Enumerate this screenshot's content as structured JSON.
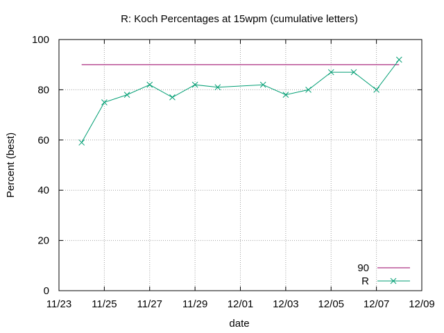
{
  "chart_data": {
    "type": "line",
    "title": "R: Koch Percentages at 15wpm (cumulative letters)",
    "xlabel": "date",
    "ylabel": "Percent (best)",
    "ylim": [
      0,
      100
    ],
    "yticks": [
      "0",
      "20",
      "40",
      "60",
      "80",
      "100"
    ],
    "xticks": [
      "11/23",
      "11/25",
      "11/27",
      "11/29",
      "12/01",
      "12/03",
      "12/05",
      "12/07",
      "12/09"
    ],
    "grid": true,
    "legend_position": "bottom-right",
    "series": [
      {
        "name": "90",
        "color": "#990066",
        "marker": "none",
        "x": [
          "11/24",
          "12/08"
        ],
        "values": [
          90,
          90
        ]
      },
      {
        "name": "R",
        "color": "#009e73",
        "marker": "x",
        "x": [
          "11/24",
          "11/25",
          "11/26",
          "11/27",
          "11/28",
          "11/29",
          "11/30",
          "12/02",
          "12/03",
          "12/04",
          "12/05",
          "12/06",
          "12/07",
          "12/08"
        ],
        "values": [
          59,
          75,
          78,
          82,
          77,
          82,
          81,
          82,
          78,
          80,
          87,
          87,
          80,
          92
        ]
      }
    ]
  }
}
